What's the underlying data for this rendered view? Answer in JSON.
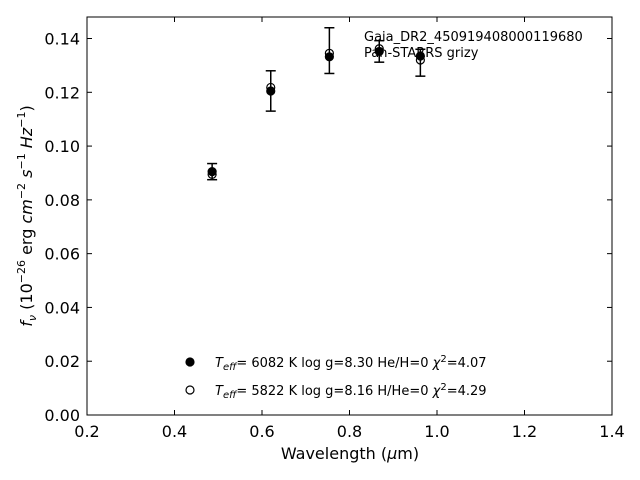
{
  "chart_data": {
    "type": "scatter",
    "xlabel": "Wavelength (μm)",
    "ylabel": "f_ν (10^-26 erg cm^-2 s^-1 Hz^-1)",
    "xlim": [
      0.2,
      1.4
    ],
    "ylim": [
      0.0,
      0.148
    ],
    "xticks": [
      "0.2",
      "0.4",
      "0.6",
      "0.8",
      "1.0",
      "1.2",
      "1.4"
    ],
    "yticks": [
      "0.00",
      "0.02",
      "0.04",
      "0.06",
      "0.08",
      "0.10",
      "0.12",
      "0.14"
    ],
    "grid": false,
    "annotation_lines": [
      "Gaia_DR2_450919408000119680",
      "Pan-STARRS grizy"
    ],
    "observed": {
      "marker": "errorbar",
      "points": [
        {
          "x": 0.486,
          "y": 0.0905,
          "err": 0.003
        },
        {
          "x": 0.62,
          "y": 0.1205,
          "err": 0.0075
        },
        {
          "x": 0.754,
          "y": 0.1355,
          "err": 0.0085
        },
        {
          "x": 0.868,
          "y": 0.1352,
          "err": 0.004
        },
        {
          "x": 0.962,
          "y": 0.131,
          "err": 0.005
        }
      ]
    },
    "series": [
      {
        "marker": "filled-circle",
        "x": [
          0.486,
          0.62,
          0.754,
          0.868,
          0.962
        ],
        "y": [
          0.0905,
          0.1205,
          0.1332,
          0.1352,
          0.1335
        ]
      },
      {
        "marker": "open-circle",
        "x": [
          0.486,
          0.62,
          0.754,
          0.868,
          0.962
        ],
        "y": [
          0.0895,
          0.1218,
          0.1345,
          0.1362,
          0.132
        ]
      }
    ],
    "legend": {
      "placement": "lower-center",
      "entries": [
        {
          "marker": "filled-circle",
          "teff": "6082 K",
          "logg": "log g=8.30",
          "comp": "He/H=0",
          "chi2": "=4.07"
        },
        {
          "marker": "open-circle",
          "teff": "5822 K",
          "logg": "log g=8.16",
          "comp": "H/He=0",
          "chi2": "=4.29"
        }
      ]
    }
  }
}
